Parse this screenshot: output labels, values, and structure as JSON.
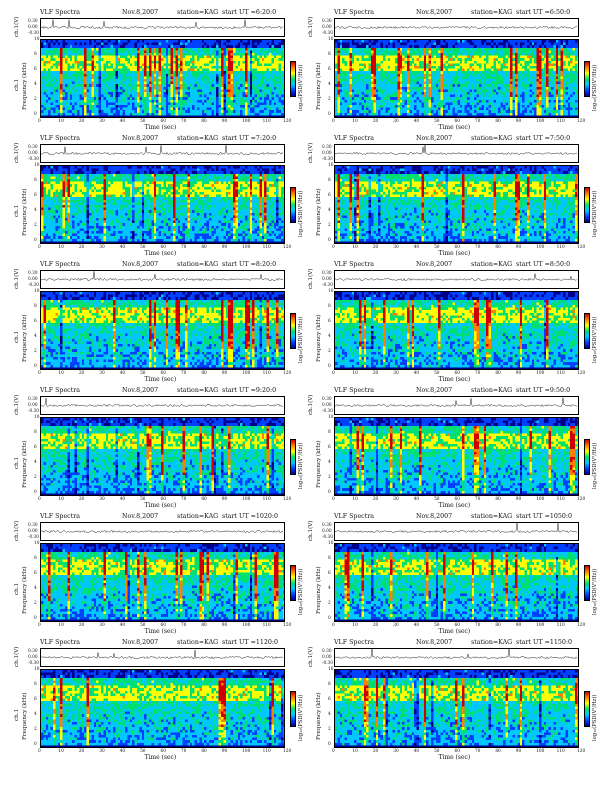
{
  "header": {
    "title": "VLF Spectra",
    "date": "Nov.8,2007",
    "station": "station=KAG"
  },
  "labels": {
    "trace_ylabel": "ch.1(V)",
    "spec_ylabel": "Frequency  (kHz)",
    "spec_ylabel_ch": "ch.1",
    "xlabel": "Time  (sec)",
    "cbar_label": "log₁₀(PSD(V²/Hz))"
  },
  "trace_ticks": [
    "0.30",
    "0.00",
    "-0.30"
  ],
  "freq_ticks": [
    "10",
    "8",
    "6",
    "4",
    "2",
    "0"
  ],
  "time_ticks": [
    "0",
    "10",
    "20",
    "30",
    "40",
    "50",
    "60",
    "70",
    "80",
    "90",
    "100",
    "110",
    "120"
  ],
  "colors": {
    "colormap": [
      "#00008a",
      "#0040ff",
      "#00c8ff",
      "#00e070",
      "#ffff00",
      "#ff8000",
      "#d00000"
    ],
    "frame": "#000000"
  },
  "chart_data": [
    {
      "type": "heatmap",
      "start_ut": "start UT =6:20:0",
      "xlabel": "Time  (sec)",
      "ylabel": "Frequency  (kHz)",
      "xlim": [
        0,
        120
      ],
      "ylim": [
        0,
        10
      ]
    },
    {
      "type": "heatmap",
      "start_ut": "start UT =6:50:0",
      "xlabel": "Time  (sec)",
      "ylabel": "Frequency  (kHz)",
      "xlim": [
        0,
        120
      ],
      "ylim": [
        0,
        10
      ]
    },
    {
      "type": "heatmap",
      "start_ut": "start UT =7:20:0",
      "xlabel": "Time  (sec)",
      "ylabel": "Frequency  (kHz)",
      "xlim": [
        0,
        120
      ],
      "ylim": [
        0,
        10
      ]
    },
    {
      "type": "heatmap",
      "start_ut": "start UT =7:50:0",
      "xlabel": "Time  (sec)",
      "ylabel": "Frequency  (kHz)",
      "xlim": [
        0,
        120
      ],
      "ylim": [
        0,
        10
      ]
    },
    {
      "type": "heatmap",
      "start_ut": "start UT =8:20:0",
      "xlabel": "Time  (sec)",
      "ylabel": "Frequency  (kHz)",
      "xlim": [
        0,
        120
      ],
      "ylim": [
        0,
        10
      ]
    },
    {
      "type": "heatmap",
      "start_ut": "start UT =8:50:0",
      "xlabel": "Time  (sec)",
      "ylabel": "Frequency  (kHz)",
      "xlim": [
        0,
        120
      ],
      "ylim": [
        0,
        10
      ]
    },
    {
      "type": "heatmap",
      "start_ut": "start UT =9:20:0",
      "xlabel": "Time  (sec)",
      "ylabel": "Frequency  (kHz)",
      "xlim": [
        0,
        120
      ],
      "ylim": [
        0,
        10
      ]
    },
    {
      "type": "heatmap",
      "start_ut": "start UT =9:50:0",
      "xlabel": "Time  (sec)",
      "ylabel": "Frequency  (kHz)",
      "xlim": [
        0,
        120
      ],
      "ylim": [
        0,
        10
      ]
    },
    {
      "type": "heatmap",
      "start_ut": "start UT =1020:0",
      "xlabel": "Time  (sec)",
      "ylabel": "Frequency  (kHz)",
      "xlim": [
        0,
        120
      ],
      "ylim": [
        0,
        10
      ]
    },
    {
      "type": "heatmap",
      "start_ut": "start UT =1050:0",
      "xlabel": "Time  (sec)",
      "ylabel": "Frequency  (kHz)",
      "xlim": [
        0,
        120
      ],
      "ylim": [
        0,
        10
      ]
    },
    {
      "type": "heatmap",
      "start_ut": "start UT =1120:0",
      "xlabel": "Time  (sec)",
      "ylabel": "Frequency  (kHz)",
      "xlim": [
        0,
        120
      ],
      "ylim": [
        0,
        10
      ]
    },
    {
      "type": "heatmap",
      "start_ut": "start UT =1150:0",
      "xlabel": "Time  (sec)",
      "ylabel": "Frequency  (kHz)",
      "xlim": [
        0,
        120
      ],
      "ylim": [
        0,
        10
      ]
    }
  ]
}
